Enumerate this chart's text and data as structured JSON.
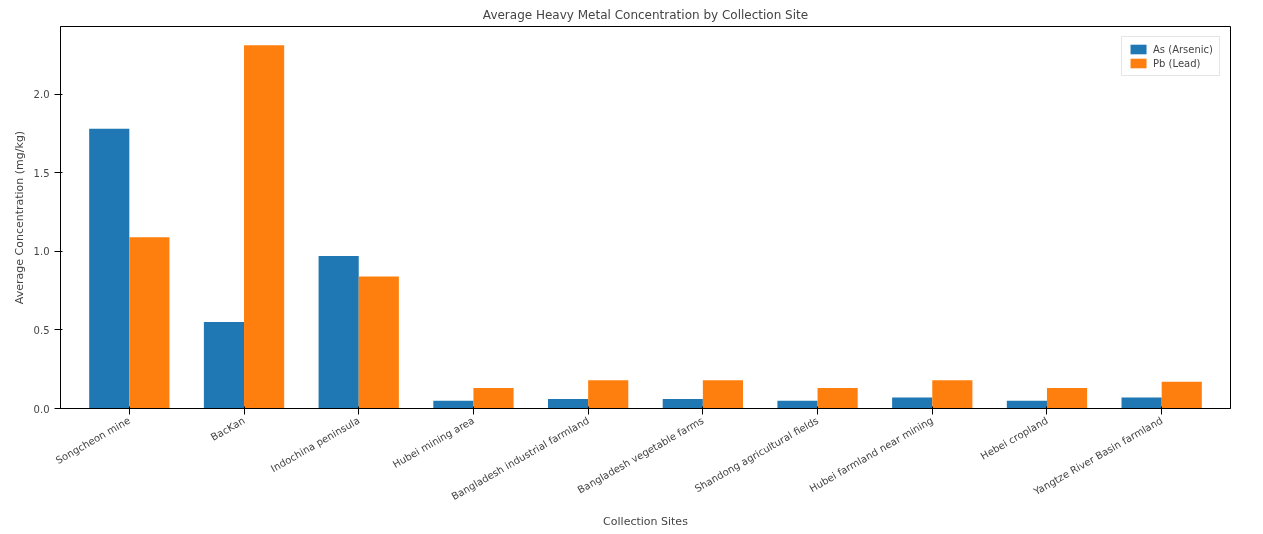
{
  "chart_data": {
    "type": "bar",
    "title": "Average Heavy Metal Concentration by Collection Site",
    "xlabel": "Collection Sites",
    "ylabel": "Average Concentration (mg/kg)",
    "categories": [
      "Songcheon mine",
      "BacKan",
      "Indochina peninsula",
      "Hubei mining area",
      "Bangladesh industrial farmland",
      "Bangladesh vegetable farms",
      "Shandong agricultural fields",
      "Hubei farmland near mining",
      "Hebei cropland",
      "Yangtze River Basin farmland"
    ],
    "series": [
      {
        "name": "As (Arsenic)",
        "color": "#1f77b4",
        "values": [
          1.78,
          0.55,
          0.97,
          0.05,
          0.06,
          0.06,
          0.05,
          0.07,
          0.05,
          0.07
        ]
      },
      {
        "name": "Pb (Lead)",
        "color": "#ff7f0e",
        "values": [
          1.09,
          2.31,
          0.84,
          0.13,
          0.18,
          0.18,
          0.13,
          0.18,
          0.13,
          0.17
        ]
      }
    ],
    "ylim": [
      0,
      2.43
    ],
    "yticks": [
      {
        "value": 0,
        "label": "0.0"
      },
      0.5,
      {
        "value": 1,
        "label": "1.0"
      },
      1.5,
      {
        "value": 2,
        "label": "2.0"
      }
    ],
    "grid": false,
    "legend": "top right"
  }
}
